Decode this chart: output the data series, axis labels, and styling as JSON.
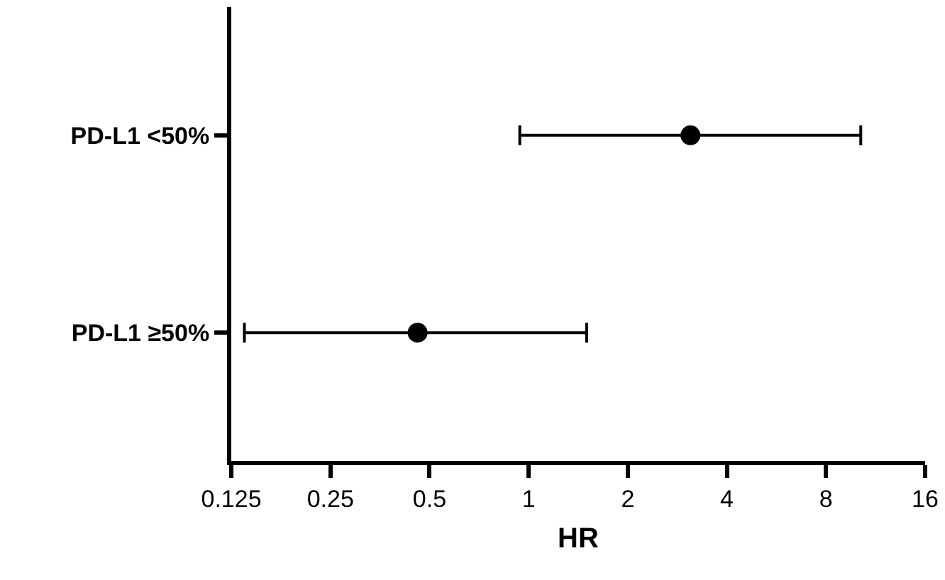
{
  "chart_data": {
    "type": "scatter",
    "orientation": "horizontal",
    "xlabel": "HR",
    "categories": [
      "PD-L1 <50%",
      "PD-L1 ≥50%"
    ],
    "values": [
      3.1,
      0.46
    ],
    "errors": [
      [
        0.94,
        10.2
      ],
      [
        0.137,
        1.5
      ]
    ],
    "color": "#000000",
    "marker": "circle",
    "log": "x",
    "xlim": [
      0.125,
      16
    ],
    "xticks": [
      0.125,
      0.25,
      0.5,
      1,
      2,
      4,
      8,
      16
    ],
    "grid": false,
    "legend": false
  }
}
